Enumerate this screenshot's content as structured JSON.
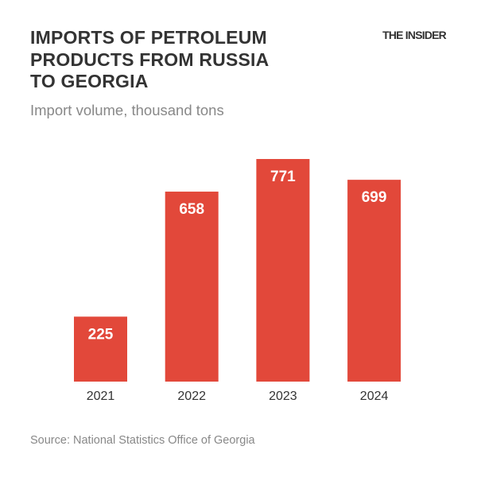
{
  "header": {
    "title_lines": [
      "IMPORTS OF PETROLEUM",
      "PRODUCTS FROM RUSSIA",
      "TO GEORGIA"
    ],
    "logo": "THE INSIDER",
    "subtitle": "Import volume, thousand tons"
  },
  "footer": {
    "source": "Source: National Statistics Office of Georgia"
  },
  "chart_data": {
    "type": "bar",
    "title": "IMPORTS OF PETROLEUM PRODUCTS FROM RUSSIA TO GEORGIA",
    "subtitle": "Import volume, thousand tons",
    "categories": [
      "2021",
      "2022",
      "2023",
      "2024"
    ],
    "values": [
      225,
      658,
      771,
      699
    ],
    "ylim": [
      0,
      771
    ],
    "grid": false,
    "data_labels": true,
    "colors": {
      "bar": "#e2483a",
      "label": "#ffffff",
      "axis_text": "#333333"
    }
  }
}
